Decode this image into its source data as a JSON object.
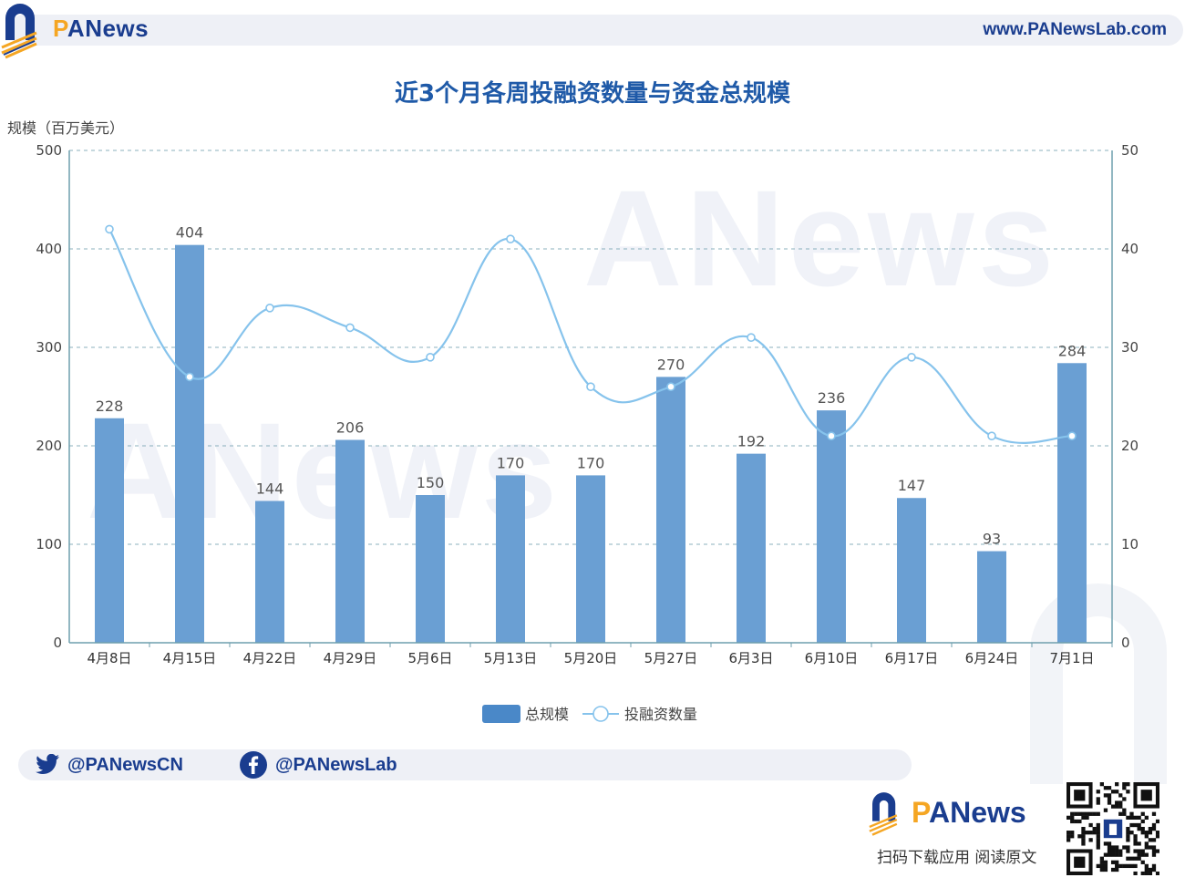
{
  "header": {
    "brand_prefix": "P",
    "brand_rest": "ANews",
    "url": "www.PANewsLab.com"
  },
  "colors": {
    "bar": "#6a9fd3",
    "line": "#86c3ec",
    "grid": "#6f9fad",
    "axis": "#6f9fad",
    "title": "#1f5aa8",
    "brand_blue": "#1a3d8f",
    "brand_orange": "#f5a623"
  },
  "chart_data": {
    "type": "bar",
    "title": "近3个月各周投融资数量与资金总规模",
    "ylabel_left": "规模（百万美元）",
    "ylabel_right": "",
    "categories": [
      "4月8日",
      "4月15日",
      "4月22日",
      "4月29日",
      "5月6日",
      "5月13日",
      "5月20日",
      "5月27日",
      "6月3日",
      "6月10日",
      "6月17日",
      "6月24日",
      "7月1日"
    ],
    "series": [
      {
        "name": "总规模",
        "type": "bar",
        "axis": "left",
        "values": [
          228,
          404,
          144,
          206,
          150,
          170,
          170,
          270,
          192,
          236,
          147,
          93,
          284
        ]
      },
      {
        "name": "投融资数量",
        "type": "line",
        "axis": "right",
        "smooth": true,
        "values": [
          42,
          27,
          34,
          32,
          29,
          41,
          26,
          26,
          31,
          21,
          29,
          21,
          21
        ]
      }
    ],
    "y_left": {
      "min": 0,
      "max": 500,
      "ticks": [
        0,
        100,
        200,
        300,
        400,
        500
      ]
    },
    "y_right": {
      "min": 0,
      "max": 50,
      "ticks": [
        0,
        10,
        20,
        30,
        40,
        50
      ]
    },
    "grid": true,
    "legend_position": "bottom-center"
  },
  "social": {
    "twitter": "@PANewsCN",
    "facebook": "@PANewsLab"
  },
  "footer": {
    "brand_prefix": "P",
    "brand_rest": "ANews",
    "caption": "扫码下载应用  阅读原文"
  }
}
